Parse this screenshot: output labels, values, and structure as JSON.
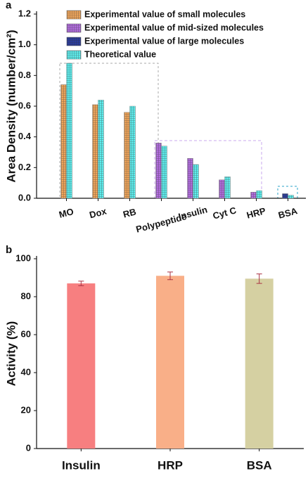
{
  "chart_data": [
    {
      "type": "bar",
      "panel": "a",
      "y_label": "Area Density (number/cm²)",
      "categories": [
        "MO",
        "Dox",
        "RB",
        "Polypeptide",
        "Insulin",
        "Cyt C",
        "HRP",
        "BSA"
      ],
      "series": [
        {
          "name": "Experimental value of small molecules",
          "color": "#f2a75c",
          "values": [
            0.74,
            0.61,
            0.56,
            null,
            null,
            null,
            null,
            null
          ]
        },
        {
          "name": "Experimental value of mid-sized molecules",
          "color": "#b36ee0",
          "values": [
            null,
            null,
            null,
            0.36,
            0.26,
            0.12,
            0.04,
            null
          ]
        },
        {
          "name": "Experimental value of large molecules",
          "color": "#2b3c9e",
          "values": [
            null,
            null,
            null,
            null,
            null,
            null,
            null,
            0.03
          ]
        },
        {
          "name": "Theoretical value",
          "color": "#5ff0f0",
          "values": [
            0.88,
            0.64,
            0.6,
            0.34,
            0.22,
            0.14,
            0.05,
            0.02
          ]
        }
      ],
      "ylim": [
        0,
        1.2
      ],
      "yticks": [
        {
          "value": 0,
          "label": "0.0"
        },
        0.2,
        0.4,
        0.6,
        0.8,
        {
          "value": 1,
          "label": "1.0"
        },
        1.2
      ],
      "legend": "upper left"
    },
    {
      "type": "bar",
      "panel": "b",
      "y_label": "Activity (%)",
      "categories": [
        "Insulin",
        "HRP",
        "BSA"
      ],
      "values": [
        87,
        91,
        89.5
      ],
      "errors": [
        1.2,
        2,
        2.5
      ],
      "colors": [
        "#f77f80",
        "#f9af88",
        "#d5d0a2"
      ],
      "ylim": [
        0,
        100
      ],
      "yticks": [
        0,
        20,
        40,
        60,
        80,
        100
      ]
    }
  ]
}
